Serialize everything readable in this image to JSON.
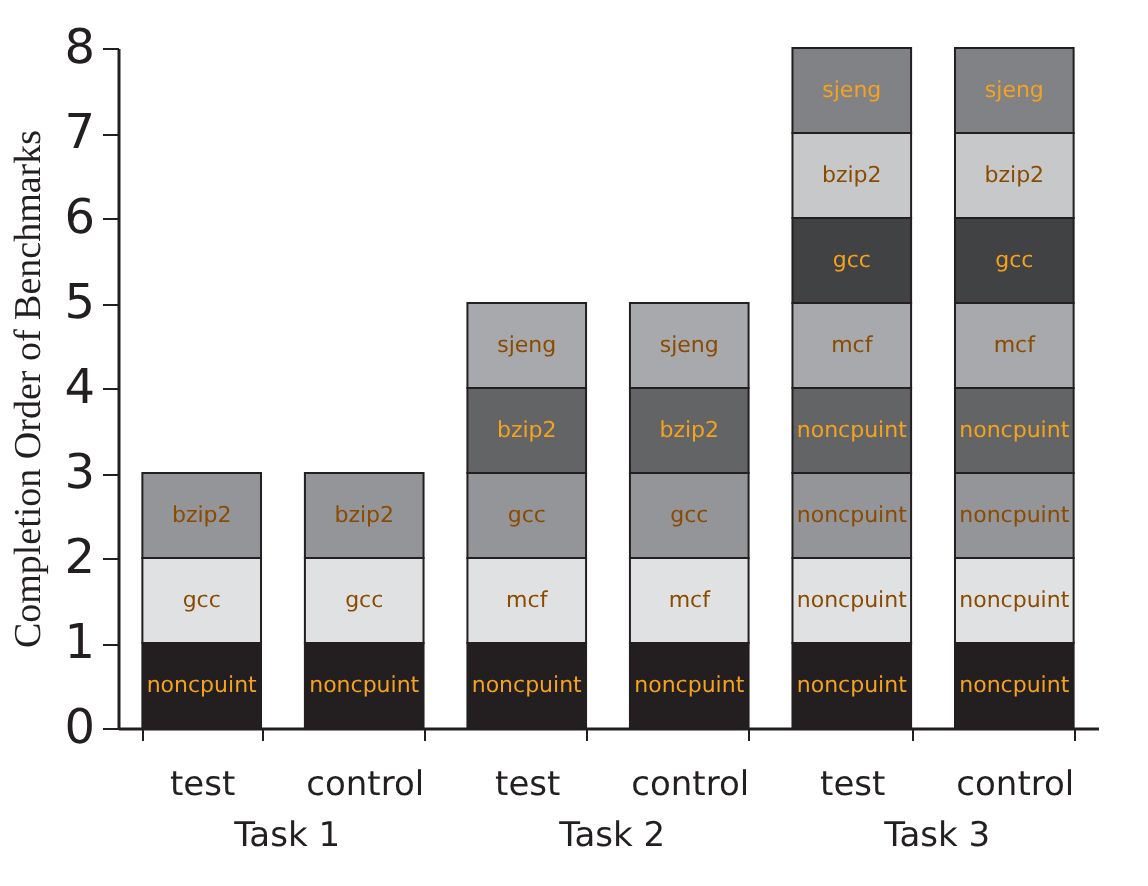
{
  "chart_data": {
    "type": "bar",
    "stacked": true,
    "ylabel": "Completion Order of Benchmarks",
    "categories": [
      "test",
      "control",
      "test",
      "control",
      "test",
      "control"
    ],
    "ylim": [
      0,
      8
    ],
    "yticks": [
      0,
      1,
      2,
      3,
      4,
      5,
      6,
      7,
      8
    ],
    "grid": false,
    "series": [
      {
        "color": "#231f20",
        "values": [
          1,
          1,
          1,
          1,
          1,
          1
        ],
        "value_labels": [
          "noncpuint",
          "noncpuint",
          "noncpuint",
          "noncpuint",
          "noncpuint",
          "noncpuint"
        ]
      },
      {
        "color": "#e0e1e2",
        "values": [
          1,
          1,
          1,
          1,
          1,
          1
        ],
        "value_labels": [
          "gcc",
          "gcc",
          "mcf",
          "mcf",
          "noncpuint",
          "noncpuint"
        ]
      },
      {
        "color": "#939598",
        "values": [
          1,
          1,
          1,
          1,
          1,
          1
        ],
        "value_labels": [
          "bzip2",
          "bzip2",
          "gcc",
          "gcc",
          "noncpuint",
          "noncpuint"
        ]
      },
      {
        "color": "#636466",
        "values": [
          null,
          null,
          1,
          1,
          1,
          1
        ],
        "value_labels": [
          null,
          null,
          "bzip2",
          "bzip2",
          "noncpuint",
          "noncpuint"
        ]
      },
      {
        "color": "#a7a9ac",
        "values": [
          null,
          null,
          1,
          1,
          1,
          1
        ],
        "value_labels": [
          null,
          null,
          "sjeng",
          "sjeng",
          "mcf",
          "mcf"
        ]
      },
      {
        "color": "#414244",
        "values": [
          null,
          null,
          null,
          null,
          1,
          1
        ],
        "value_labels": [
          null,
          null,
          null,
          null,
          "gcc",
          "gcc"
        ]
      },
      {
        "color": "#c7c8ca",
        "values": [
          null,
          null,
          null,
          null,
          1,
          1
        ],
        "value_labels": [
          null,
          null,
          null,
          null,
          "bzip2",
          "bzip2"
        ]
      },
      {
        "color": "#808285",
        "values": [
          null,
          null,
          null,
          null,
          1,
          1
        ],
        "value_labels": [
          null,
          null,
          null,
          null,
          "sjeng",
          "sjeng"
        ]
      }
    ],
    "annotations": [
      "Task 1",
      "Task 2",
      "Task 3"
    ]
  }
}
